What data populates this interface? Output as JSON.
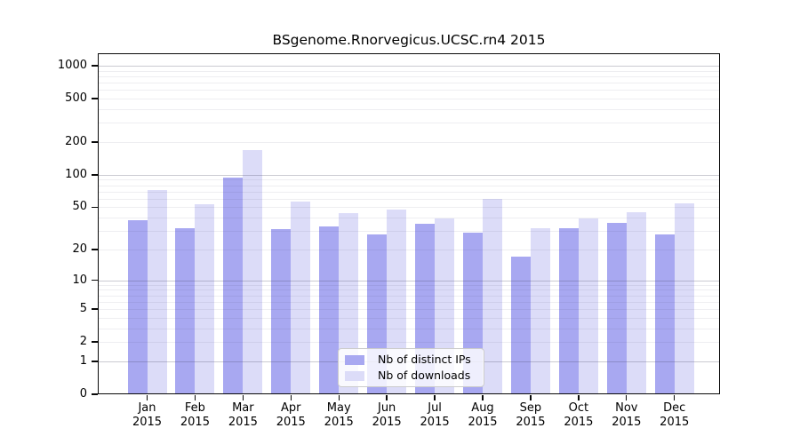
{
  "chart_data": {
    "type": "bar",
    "title": "BSgenome.Rnorvegicus.UCSC.rn4 2015",
    "categories": [
      {
        "month": "Jan",
        "year": "2015"
      },
      {
        "month": "Feb",
        "year": "2015"
      },
      {
        "month": "Mar",
        "year": "2015"
      },
      {
        "month": "Apr",
        "year": "2015"
      },
      {
        "month": "May",
        "year": "2015"
      },
      {
        "month": "Jun",
        "year": "2015"
      },
      {
        "month": "Jul",
        "year": "2015"
      },
      {
        "month": "Aug",
        "year": "2015"
      },
      {
        "month": "Sep",
        "year": "2015"
      },
      {
        "month": "Oct",
        "year": "2015"
      },
      {
        "month": "Nov",
        "year": "2015"
      },
      {
        "month": "Dec",
        "year": "2015"
      }
    ],
    "series": [
      {
        "name": "Nb of distinct IPs",
        "color": "#a8a8f1",
        "values": [
          38,
          32,
          95,
          31,
          33,
          28,
          35,
          29,
          17,
          32,
          36,
          28
        ]
      },
      {
        "name": "Nb of downloads",
        "color": "#dcdcf8",
        "values": [
          73,
          53,
          170,
          57,
          44,
          48,
          39,
          60,
          32,
          39,
          45,
          54
        ]
      }
    ],
    "y_axis": {
      "scale": "log1p",
      "range": [
        0,
        1000
      ],
      "ticks": [
        0,
        1,
        2,
        5,
        10,
        20,
        50,
        100,
        200,
        500,
        1000
      ],
      "major_gridlines": [
        1,
        10,
        100,
        1000
      ]
    },
    "legend": {
      "position": "inside-bottom-center",
      "entries": [
        "Nb of distinct IPs",
        "Nb of downloads"
      ]
    },
    "grid": true
  }
}
